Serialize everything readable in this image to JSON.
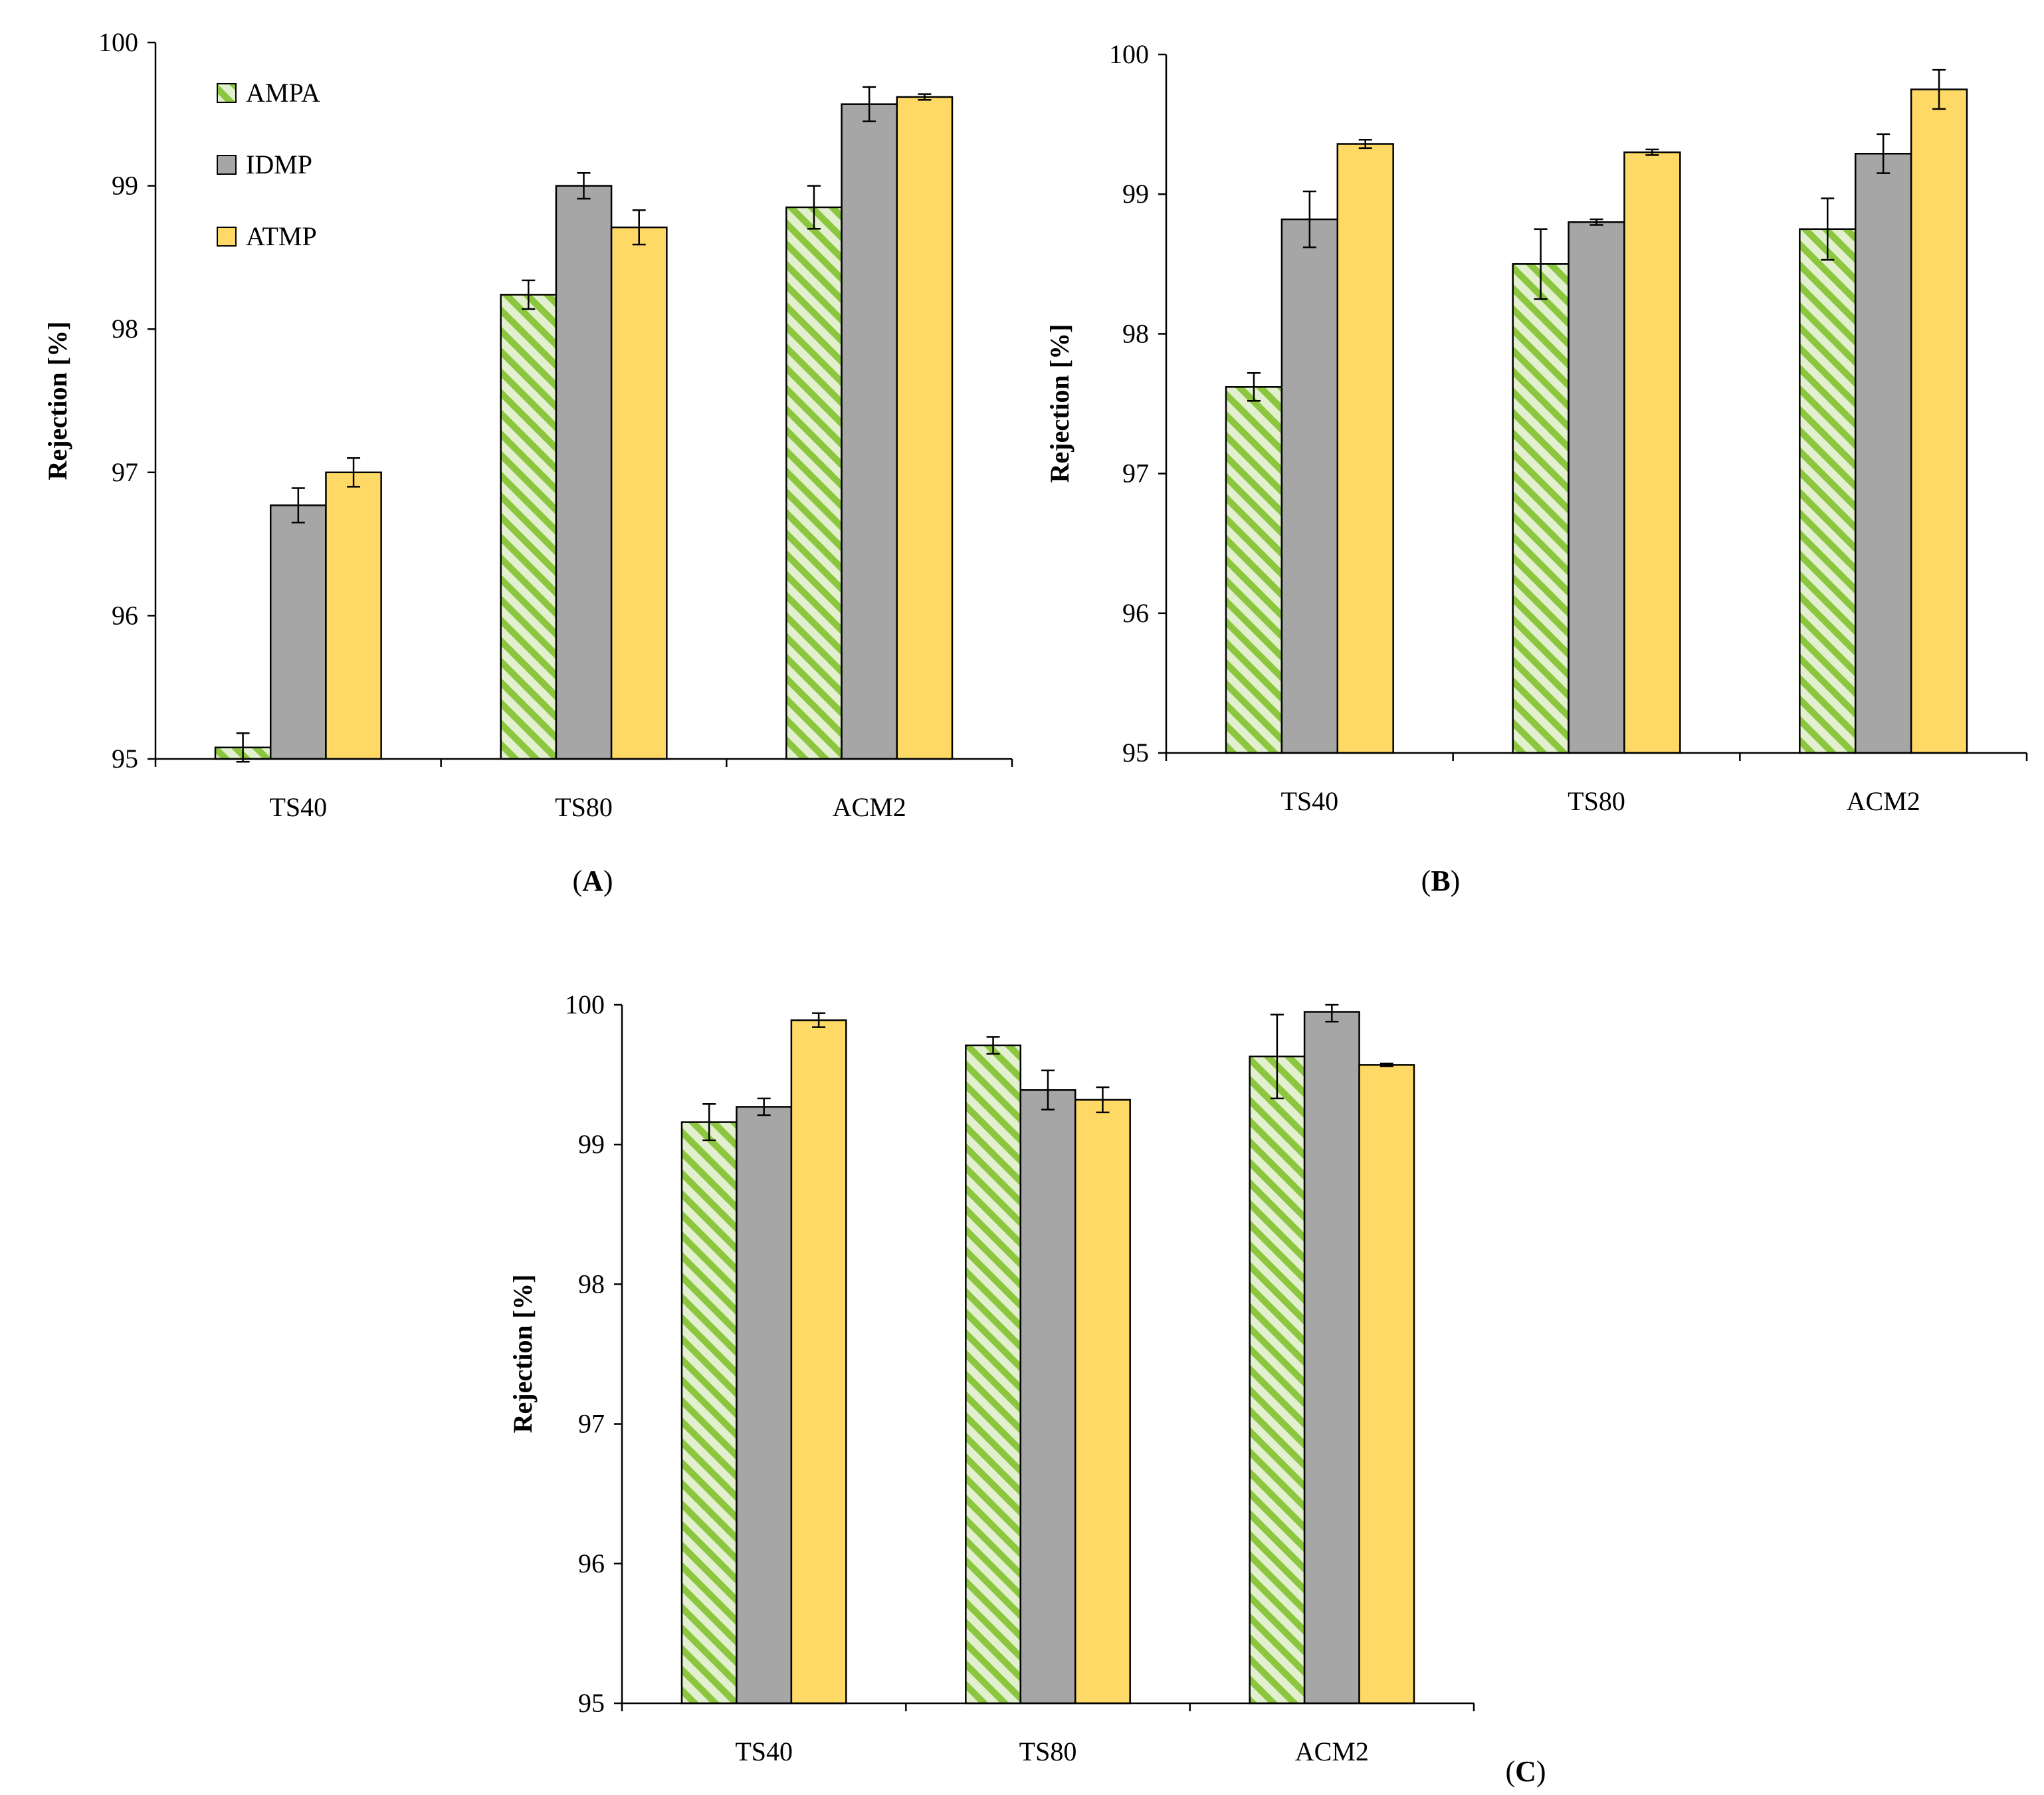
{
  "figure": {
    "series_styles": {
      "AMPA": {
        "fill": "#e2f0cf",
        "stripe": "#8cc63f",
        "stroke": "#000000"
      },
      "IDMP": {
        "fill": "#a6a6a6",
        "stroke": "#000000"
      },
      "ATMP": {
        "fill": "#ffd966",
        "stroke": "#000000"
      }
    }
  },
  "chart_data": [
    {
      "type": "bar",
      "panel": "A",
      "panel_label": "(A)",
      "panel_letter": "A",
      "title": "",
      "xlabel": "",
      "ylabel": "Rejection [%]",
      "ylim": [
        95,
        100
      ],
      "yticks": [
        95,
        96,
        97,
        98,
        99,
        100
      ],
      "grid": false,
      "legend": {
        "position": "top-left",
        "entries": [
          "AMPA",
          "IDMP",
          "ATMP"
        ]
      },
      "categories": [
        "TS40",
        "TS80",
        "ACM2"
      ],
      "series": [
        {
          "name": "AMPA",
          "values": [
            95.08,
            98.24,
            98.85
          ],
          "errors": [
            0.1,
            0.1,
            0.15
          ]
        },
        {
          "name": "IDMP",
          "values": [
            96.77,
            99.0,
            99.57
          ],
          "errors": [
            0.12,
            0.09,
            0.12
          ]
        },
        {
          "name": "ATMP",
          "values": [
            97.0,
            98.71,
            99.62
          ],
          "errors": [
            0.1,
            0.12,
            0.02
          ]
        }
      ]
    },
    {
      "type": "bar",
      "panel": "B",
      "panel_label": "(B)",
      "panel_letter": "B",
      "title": "",
      "xlabel": "",
      "ylabel": "Rejection [%]",
      "ylim": [
        95,
        100
      ],
      "yticks": [
        95,
        96,
        97,
        98,
        99,
        100
      ],
      "grid": false,
      "legend": null,
      "categories": [
        "TS40",
        "TS80",
        "ACM2"
      ],
      "series": [
        {
          "name": "AMPA",
          "values": [
            97.62,
            98.5,
            98.75
          ],
          "errors": [
            0.1,
            0.25,
            0.22
          ]
        },
        {
          "name": "IDMP",
          "values": [
            98.82,
            98.8,
            99.29
          ],
          "errors": [
            0.2,
            0.02,
            0.14
          ]
        },
        {
          "name": "ATMP",
          "values": [
            99.36,
            99.3,
            99.75
          ],
          "errors": [
            0.03,
            0.02,
            0.14
          ]
        }
      ]
    },
    {
      "type": "bar",
      "panel": "C",
      "panel_label": "(C)",
      "panel_letter": "C",
      "title": "",
      "xlabel": "",
      "ylabel": "Rejection [%]",
      "ylim": [
        95,
        100
      ],
      "yticks": [
        95,
        96,
        97,
        98,
        99,
        100
      ],
      "grid": false,
      "legend": null,
      "categories": [
        "TS40",
        "TS80",
        "ACM2"
      ],
      "series": [
        {
          "name": "AMPA",
          "values": [
            99.16,
            99.71,
            99.63
          ],
          "errors": [
            0.13,
            0.06,
            0.3
          ]
        },
        {
          "name": "IDMP",
          "values": [
            99.27,
            99.39,
            99.95
          ],
          "errors": [
            0.06,
            0.14,
            0.07
          ]
        },
        {
          "name": "ATMP",
          "values": [
            99.89,
            99.32,
            99.57
          ],
          "errors": [
            0.05,
            0.09,
            0.01
          ]
        }
      ]
    }
  ]
}
